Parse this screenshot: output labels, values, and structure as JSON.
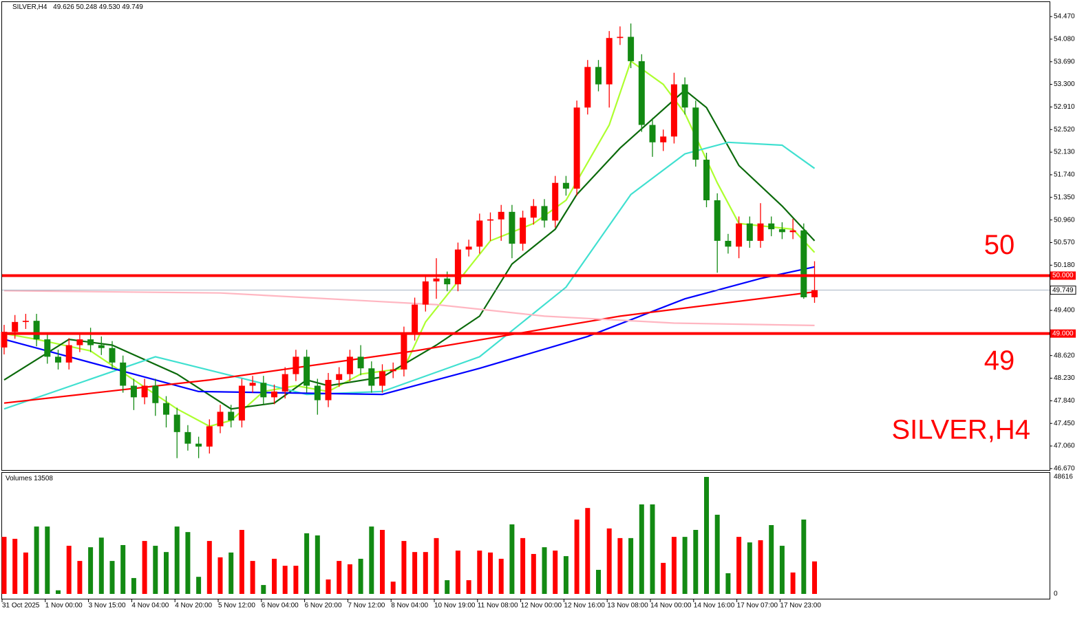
{
  "chart_data": [
    {
      "type": "candlestick",
      "title": "SILVER,H4",
      "subtitle": "49.626 50.248 49.530 49.749",
      "up_color": "#ff0000",
      "down_color": "#138a13",
      "categories": [
        "31 Oct 2025",
        null,
        null,
        null,
        "1 Nov 00:00",
        null,
        null,
        null,
        "3 Nov 15:00",
        null,
        null,
        null,
        "4 Nov 04:00",
        null,
        null,
        null,
        "4 Nov 20:00",
        null,
        null,
        null,
        "5 Nov 12:00",
        null,
        null,
        null,
        "6 Nov 04:00",
        null,
        null,
        null,
        "6 Nov 20:00",
        null,
        null,
        null,
        "7 Nov 12:00",
        null,
        null,
        null,
        "8 Nov 04:00",
        null,
        null,
        null,
        "10 Nov 19:00",
        null,
        null,
        null,
        "11 Nov 08:00",
        null,
        null,
        null,
        "12 Nov 00:00",
        null,
        null,
        null,
        "12 Nov 16:00",
        null,
        null,
        null,
        "13 Nov 08:00",
        null,
        null,
        null,
        "14 Nov 00:00",
        null,
        null,
        null,
        "14 Nov 16:00",
        null,
        null,
        null,
        "17 Nov 07:00",
        null,
        null,
        null,
        "17 Nov 23:00",
        null,
        null,
        null
      ],
      "open": [
        48.76,
        49.03,
        49.2,
        49.22,
        48.9,
        48.6,
        48.5,
        48.8,
        48.9,
        48.8,
        48.75,
        48.5,
        48.1,
        47.9,
        48.1,
        47.8,
        47.6,
        47.3,
        47.1,
        47.05,
        47.4,
        47.65,
        47.5,
        48.1,
        48.15,
        47.9,
        48.0,
        48.3,
        48.6,
        48.1,
        47.85,
        48.2,
        48.3,
        48.6,
        48.4,
        48.1,
        48.35,
        48.38,
        49.0,
        49.5,
        49.9,
        49.95,
        49.85,
        50.45,
        50.5,
        50.95,
        50.97,
        51.1,
        50.55,
        51.0,
        51.2,
        50.95,
        51.6,
        51.5,
        52.9,
        53.6,
        53.3,
        54.1,
        54.12,
        53.7,
        52.6,
        52.3,
        52.4,
        53.3,
        52.9,
        52.0,
        51.3,
        50.6,
        50.5,
        50.9,
        50.6,
        50.9,
        50.8,
        50.75,
        50.78,
        49.626
      ],
      "high": [
        49.15,
        49.32,
        49.34,
        49.34,
        49.02,
        48.72,
        48.92,
        49.02,
        49.1,
        48.95,
        48.87,
        48.62,
        48.22,
        48.22,
        48.22,
        47.92,
        47.72,
        47.42,
        47.22,
        47.52,
        47.77,
        47.77,
        48.22,
        48.27,
        48.27,
        48.12,
        48.42,
        48.72,
        48.72,
        48.22,
        48.32,
        48.42,
        48.72,
        48.8,
        48.52,
        48.47,
        48.5,
        49.12,
        49.62,
        50.02,
        50.3,
        50.07,
        50.57,
        50.62,
        51.07,
        51.09,
        51.22,
        51.22,
        51.12,
        51.32,
        51.32,
        51.72,
        51.72,
        53.02,
        53.72,
        53.72,
        54.22,
        54.3,
        54.35,
        53.82,
        52.72,
        52.52,
        53.5,
        53.42,
        53.02,
        52.12,
        51.42,
        50.72,
        51.02,
        51.02,
        51.25,
        51.02,
        50.92,
        50.98,
        50.9,
        50.248
      ],
      "low": [
        48.64,
        48.91,
        49.08,
        48.78,
        48.48,
        48.38,
        48.38,
        48.68,
        48.68,
        48.63,
        48.38,
        47.98,
        47.68,
        47.78,
        47.58,
        47.38,
        46.85,
        46.98,
        46.85,
        46.93,
        47.28,
        47.38,
        47.38,
        47.98,
        47.78,
        47.78,
        47.88,
        48.18,
        47.98,
        47.6,
        47.73,
        48.08,
        48.18,
        48.28,
        47.98,
        47.98,
        48.23,
        48.26,
        48.88,
        49.38,
        49.6,
        49.73,
        49.73,
        50.33,
        50.38,
        50.6,
        50.6,
        50.3,
        50.43,
        50.88,
        50.83,
        50.83,
        51.38,
        51.38,
        52.78,
        53.18,
        52.9,
        53.98,
        53.58,
        52.48,
        52.05,
        52.15,
        52.28,
        52.78,
        51.88,
        51.18,
        50.05,
        50.38,
        50.3,
        50.48,
        50.48,
        50.68,
        50.63,
        50.63,
        49.6,
        49.53
      ],
      "close": [
        49.03,
        49.2,
        49.22,
        48.9,
        48.6,
        48.5,
        48.8,
        48.9,
        48.8,
        48.75,
        48.5,
        48.1,
        47.9,
        48.1,
        47.8,
        47.6,
        47.3,
        47.1,
        47.05,
        47.4,
        47.65,
        47.5,
        48.1,
        48.15,
        47.9,
        48.0,
        48.3,
        48.6,
        48.1,
        47.85,
        48.2,
        48.3,
        48.6,
        48.4,
        48.1,
        48.35,
        48.38,
        49.0,
        49.5,
        49.9,
        49.95,
        49.85,
        50.45,
        50.5,
        50.95,
        50.97,
        51.1,
        50.55,
        51.0,
        51.2,
        50.95,
        51.6,
        51.5,
        52.9,
        53.6,
        53.3,
        54.1,
        54.12,
        53.7,
        52.6,
        52.3,
        52.4,
        53.3,
        52.9,
        52.0,
        51.3,
        50.6,
        50.5,
        50.9,
        50.6,
        50.9,
        50.8,
        50.75,
        50.78,
        49.626,
        49.749
      ],
      "series": [
        {
          "color": "#adff2f",
          "x": [
            0,
            3,
            8,
            12,
            16,
            19,
            21,
            24,
            27,
            30,
            33,
            37,
            39,
            42,
            45,
            49,
            52,
            56,
            58,
            61,
            63,
            66,
            68,
            73,
            75
          ],
          "values": [
            49.0,
            48.9,
            48.7,
            48.2,
            47.7,
            47.4,
            47.5,
            48.0,
            48.1,
            48.0,
            48.3,
            48.4,
            49.2,
            49.9,
            50.6,
            50.9,
            51.3,
            52.6,
            53.7,
            53.3,
            52.8,
            51.6,
            50.9,
            50.8,
            50.4
          ]
        },
        {
          "color": "#0b6a0b",
          "x": [
            0,
            6,
            10,
            16,
            21,
            25,
            28,
            30,
            35,
            40,
            44,
            47,
            51,
            53,
            57,
            60,
            63,
            65,
            68,
            72,
            75
          ],
          "values": [
            48.2,
            48.9,
            48.8,
            48.3,
            47.7,
            47.8,
            48.2,
            48.1,
            48.25,
            48.8,
            49.3,
            50.2,
            50.8,
            51.4,
            52.2,
            52.7,
            53.2,
            52.9,
            51.9,
            51.2,
            50.6
          ]
        },
        {
          "color": "#40e0d0",
          "x": [
            0,
            14,
            28,
            35,
            44,
            52,
            58,
            63,
            67,
            72,
            75
          ],
          "values": [
            47.7,
            48.6,
            47.95,
            48.0,
            48.6,
            49.8,
            51.4,
            52.1,
            52.3,
            52.25,
            51.85
          ]
        },
        {
          "color": "#0000ff",
          "x": [
            0,
            18,
            35,
            44,
            54,
            63,
            70,
            75
          ],
          "values": [
            48.9,
            48.0,
            47.95,
            48.4,
            48.95,
            49.6,
            49.95,
            50.15
          ]
        },
        {
          "color": "#ff0000",
          "x": [
            0,
            19,
            38,
            57,
            75
          ],
          "values": [
            47.8,
            48.2,
            48.7,
            49.3,
            49.72
          ]
        },
        {
          "color": "#ffb6c1",
          "x": [
            0,
            20,
            40,
            50,
            62,
            75
          ],
          "values": [
            49.74,
            49.7,
            49.5,
            49.3,
            49.18,
            49.14
          ]
        }
      ],
      "levels": [
        {
          "value": 50,
          "label": "50.000"
        },
        {
          "value": 49,
          "label": "49.000"
        }
      ],
      "level_color": "#ff0000",
      "current_price": {
        "value": 49.749,
        "label": "49.749"
      },
      "ylim": [
        46.645,
        54.72
      ],
      "yticks": [
        {
          "value": 46.67,
          "label": "46.670"
        },
        {
          "value": 47.06,
          "label": "47.060"
        },
        {
          "value": 47.45,
          "label": "47.450"
        },
        {
          "value": 47.84,
          "label": "47.840"
        },
        {
          "value": 48.23,
          "label": "48.230"
        },
        {
          "value": 48.62,
          "label": "48.620"
        },
        {
          "value": 49.4,
          "label": "49.400"
        },
        {
          "value": 50.18,
          "label": "50.180"
        },
        {
          "value": 50.57,
          "label": "50.570"
        },
        {
          "value": 50.96,
          "label": "50.960"
        },
        {
          "value": 51.35,
          "label": "51.350"
        },
        {
          "value": 51.74,
          "label": "51.740"
        },
        {
          "value": 52.13,
          "label": "52.130"
        },
        {
          "value": 52.52,
          "label": "52.520"
        },
        {
          "value": 52.91,
          "label": "52.910"
        },
        {
          "value": 53.3,
          "label": "53.300"
        },
        {
          "value": 53.69,
          "label": "53.690"
        },
        {
          "value": 54.08,
          "label": "54.080"
        },
        {
          "value": 54.47,
          "label": "54.470"
        }
      ]
    },
    {
      "type": "bar",
      "title": "Volumes",
      "values": [
        23700,
        22900,
        17200,
        28000,
        28000,
        1500,
        20000,
        13700,
        19400,
        23400,
        13700,
        20300,
        6600,
        22000,
        20000,
        17400,
        28000,
        25700,
        7100,
        22000,
        15200,
        17200,
        26600,
        13700,
        3700,
        14600,
        11700,
        11700,
        25200,
        24300,
        6000,
        13700,
        12300,
        14600,
        28000,
        26600,
        5100,
        22000,
        17400,
        17400,
        23200,
        5700,
        18000,
        5700,
        18000,
        17200,
        14600,
        28900,
        23200,
        16600,
        19400,
        18000,
        15700,
        30900,
        35700,
        10000,
        27200,
        23200,
        23200,
        37200,
        37200,
        12900,
        23700,
        23700,
        26600,
        48616,
        32900,
        8600,
        23700,
        21400,
        22300,
        28600,
        20000,
        8900,
        30900,
        13508
      ],
      "ylim": [
        -2000,
        50330
      ],
      "yticks": [
        0,
        48616
      ]
    }
  ]
}
